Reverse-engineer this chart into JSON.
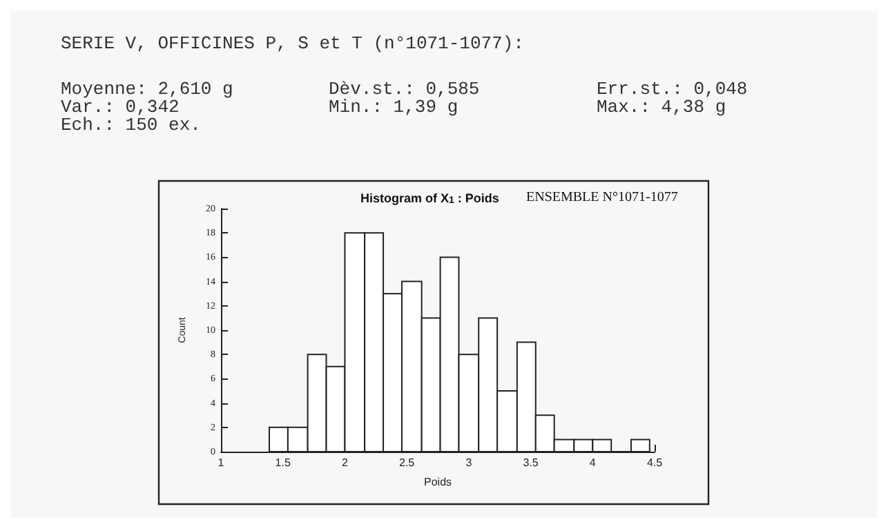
{
  "chart_data": {
    "type": "histogram",
    "title": "Histogram of X$_{1}$ : Poids",
    "subtitle": "ENSEMBLE N°1071-1077",
    "xlabel": "Poids",
    "ylabel": "Count",
    "annotations": [
      "SERIE V, OFFICINES P, S et T (n°1071-1077):",
      "Moyenne: 2,610 g",
      "Dèv.st.: 0,585",
      "Err.st.: 0,048",
      "Var.: 0,342",
      "Min.: 1,39 g",
      "Max.: 4,38 g",
      "Ech.: 150 ex."
    ],
    "bins": [
      1.39,
      1.54,
      1.7,
      1.85,
      2.0,
      2.16,
      2.31,
      2.46,
      2.62,
      2.77,
      2.92,
      3.08,
      3.23,
      3.39,
      3.54,
      3.69,
      3.85,
      4.0,
      4.15,
      4.31,
      4.46
    ],
    "values": [
      2,
      2,
      8,
      7,
      18,
      18,
      13,
      14,
      11,
      16,
      8,
      11,
      5,
      9,
      3,
      1,
      1,
      1,
      0,
      1
    ],
    "color": "#ffffff",
    "xlim": [
      1,
      4.5
    ],
    "xticks": [
      1,
      1.5,
      2,
      2.5,
      3,
      3.5,
      4,
      4.5
    ],
    "ylim": [
      0,
      20
    ],
    "yticks": [
      0,
      2,
      4,
      6,
      8,
      10,
      12,
      14,
      16,
      18,
      20
    ],
    "grid": false
  }
}
